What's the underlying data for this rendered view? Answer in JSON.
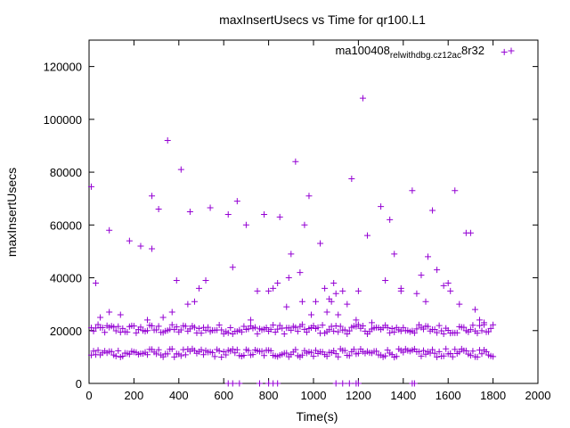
{
  "chart_data": {
    "type": "scatter",
    "title": "maxInsertUsecs vs Time for qr100.L1",
    "xlabel": "Time(s)",
    "ylabel": "maxInsertUsecs",
    "xlim": [
      0,
      2000
    ],
    "ylim": [
      0,
      130000
    ],
    "x_ticks": [
      0,
      200,
      400,
      600,
      800,
      1000,
      1200,
      1400,
      1600,
      1800,
      2000
    ],
    "y_ticks": [
      0,
      20000,
      40000,
      60000,
      80000,
      100000,
      120000
    ],
    "x_tick_labels": [
      "0",
      "200",
      "400",
      "600",
      "800",
      "1000",
      "1200",
      "1400",
      "1600",
      "1800",
      "2000"
    ],
    "y_tick_labels": [
      "0",
      "20000",
      "40000",
      "60000",
      "80000",
      "100000",
      "120000"
    ],
    "grid": false,
    "legend_position": "top-right",
    "marker": "+",
    "color": "#9400d3",
    "series": [
      {
        "name": "ma100408_rel_withdbg.cz12a_c8r32",
        "legend_label_main": "ma100408",
        "legend_label_parts": [
          {
            "text": "rel",
            "sub": true
          },
          {
            "text": "withdbg.cz12a",
            "sub": true
          },
          {
            "text": "c",
            "sub": true
          },
          {
            "text": "8r32",
            "sub": false
          }
        ],
        "bands": [
          {
            "from": 10,
            "to": 1800,
            "step": 10,
            "center": 20500,
            "spread": 1800
          },
          {
            "from": 10,
            "to": 1800,
            "step": 10,
            "center": 11500,
            "spread": 1600
          }
        ],
        "points": [
          [
            10,
            74500
          ],
          [
            30,
            38000
          ],
          [
            50,
            25000
          ],
          [
            90,
            58000
          ],
          [
            90,
            27000
          ],
          [
            140,
            26000
          ],
          [
            180,
            54000
          ],
          [
            230,
            52000
          ],
          [
            260,
            24000
          ],
          [
            280,
            71000
          ],
          [
            280,
            51000
          ],
          [
            310,
            66000
          ],
          [
            330,
            25000
          ],
          [
            350,
            92000
          ],
          [
            370,
            27000
          ],
          [
            390,
            39000
          ],
          [
            410,
            81000
          ],
          [
            440,
            30000
          ],
          [
            450,
            65000
          ],
          [
            470,
            31000
          ],
          [
            490,
            36000
          ],
          [
            520,
            39000
          ],
          [
            540,
            66500
          ],
          [
            620,
            64000
          ],
          [
            640,
            44000
          ],
          [
            660,
            69000
          ],
          [
            700,
            60000
          ],
          [
            720,
            24000
          ],
          [
            750,
            35000
          ],
          [
            780,
            64000
          ],
          [
            800,
            35000
          ],
          [
            820,
            36000
          ],
          [
            840,
            38000
          ],
          [
            850,
            63000
          ],
          [
            880,
            29000
          ],
          [
            890,
            40000
          ],
          [
            900,
            49000
          ],
          [
            920,
            84000
          ],
          [
            940,
            42000
          ],
          [
            950,
            31000
          ],
          [
            960,
            60000
          ],
          [
            980,
            71000
          ],
          [
            990,
            26000
          ],
          [
            1010,
            31000
          ],
          [
            1030,
            53000
          ],
          [
            1050,
            36000
          ],
          [
            1060,
            27000
          ],
          [
            1070,
            32000
          ],
          [
            1080,
            31000
          ],
          [
            1090,
            38000
          ],
          [
            1100,
            34000
          ],
          [
            1110,
            26000
          ],
          [
            1130,
            35000
          ],
          [
            1150,
            30000
          ],
          [
            1170,
            77500
          ],
          [
            1190,
            24000
          ],
          [
            1200,
            35000
          ],
          [
            1220,
            108000
          ],
          [
            1240,
            56000
          ],
          [
            1260,
            23000
          ],
          [
            1300,
            67000
          ],
          [
            1320,
            39000
          ],
          [
            1340,
            62000
          ],
          [
            1360,
            49000
          ],
          [
            1390,
            36000
          ],
          [
            1390,
            35000
          ],
          [
            1440,
            73000
          ],
          [
            1460,
            34000
          ],
          [
            1480,
            41000
          ],
          [
            1500,
            31000
          ],
          [
            1510,
            48000
          ],
          [
            1530,
            65500
          ],
          [
            1550,
            43000
          ],
          [
            1580,
            37000
          ],
          [
            1600,
            38000
          ],
          [
            1610,
            35000
          ],
          [
            1630,
            73000
          ],
          [
            1650,
            30000
          ],
          [
            1680,
            57000
          ],
          [
            1700,
            57000
          ],
          [
            1720,
            28000
          ],
          [
            1740,
            24000
          ],
          [
            1760,
            23000
          ],
          [
            1850,
            125500
          ],
          [
            620,
            0
          ],
          [
            640,
            0
          ],
          [
            670,
            0
          ],
          [
            760,
            0
          ],
          [
            800,
            0
          ],
          [
            820,
            0
          ],
          [
            840,
            0
          ],
          [
            1100,
            0
          ],
          [
            1130,
            0
          ],
          [
            1160,
            0
          ],
          [
            1190,
            0
          ],
          [
            1200,
            0
          ],
          [
            1440,
            0
          ],
          [
            1450,
            0
          ]
        ]
      }
    ]
  }
}
